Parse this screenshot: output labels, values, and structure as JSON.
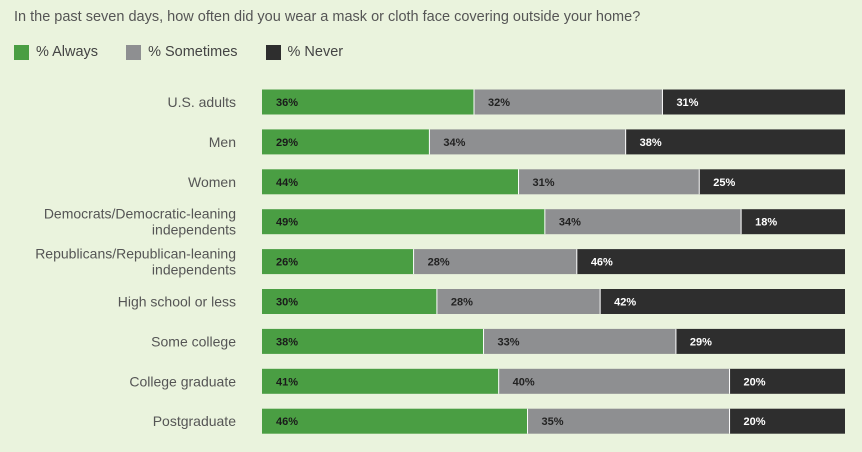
{
  "chart_data": {
    "type": "bar",
    "orientation": "horizontal",
    "stacked": true,
    "title": "In the past seven days, how often did you wear a mask or cloth face covering outside your home?",
    "categories": [
      [
        "U.S. adults"
      ],
      [
        "Men"
      ],
      [
        "Women"
      ],
      [
        "Democrats/Democratic-leaning",
        "independents"
      ],
      [
        "Republicans/Republican-leaning",
        "independents"
      ],
      [
        "High school or less"
      ],
      [
        "Some college"
      ],
      [
        "College graduate"
      ],
      [
        "Postgraduate"
      ]
    ],
    "series": [
      {
        "name": "% Always",
        "color": "#4a9e43",
        "label_color": "#1a1a1a",
        "values": [
          36,
          29,
          44,
          49,
          26,
          30,
          38,
          41,
          46
        ]
      },
      {
        "name": "% Sometimes",
        "color": "#8e8f91",
        "label_color": "#222222",
        "values": [
          32,
          34,
          31,
          34,
          28,
          28,
          33,
          40,
          35
        ]
      },
      {
        "name": "% Never",
        "color": "#2e2e2e",
        "label_color": "#ffffff",
        "values": [
          31,
          38,
          25,
          18,
          46,
          42,
          29,
          20,
          20
        ]
      }
    ],
    "value_suffix": "%",
    "legend_position": "top-left",
    "grid": false
  }
}
